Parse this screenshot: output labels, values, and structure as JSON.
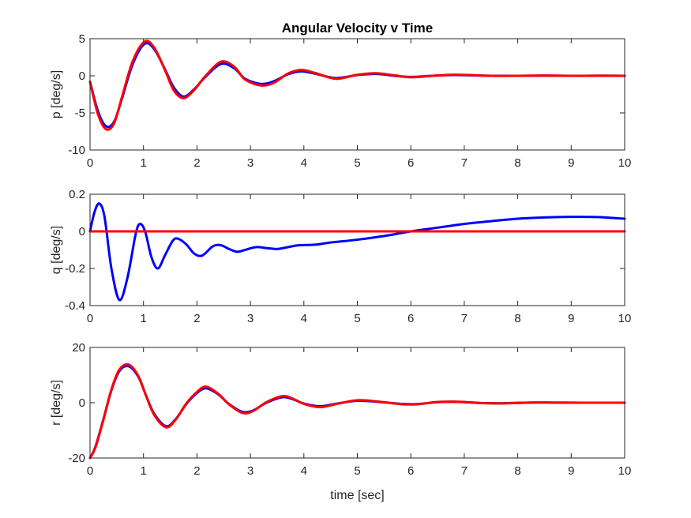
{
  "chart_data": [
    {
      "type": "line",
      "title": "Angular Velocity v Time",
      "ylabel": "p [deg/s]",
      "xlabel": "",
      "xlim": [
        0,
        10
      ],
      "ylim": [
        -10,
        5
      ],
      "xticks": [
        0,
        1,
        2,
        3,
        4,
        5,
        6,
        7,
        8,
        9,
        10
      ],
      "yticks": [
        -10,
        -5,
        0,
        5
      ],
      "grid": false,
      "series": [
        {
          "color": "#0000ff",
          "x": [
            0,
            0.15,
            0.3,
            0.45,
            0.6,
            0.8,
            1.02,
            1.2,
            1.4,
            1.57,
            1.75,
            1.95,
            2.15,
            2.45,
            2.7,
            2.9,
            3.2,
            3.45,
            3.7,
            3.95,
            4.2,
            4.6,
            5.0,
            5.35,
            5.7,
            6.0,
            6.4,
            6.8,
            7.2,
            7.5,
            8.0,
            8.5,
            9.0,
            9.5,
            10.0
          ],
          "y": [
            -0.8,
            -4.8,
            -6.8,
            -6.2,
            -3.0,
            1.6,
            4.3,
            3.6,
            0.9,
            -1.6,
            -2.8,
            -1.8,
            -0.2,
            1.6,
            1.0,
            -0.4,
            -1.1,
            -0.7,
            0.2,
            0.6,
            0.3,
            -0.3,
            0.1,
            0.25,
            0.0,
            -0.15,
            0.0,
            0.1,
            0.05,
            0.0,
            0.0,
            0.02,
            0.0,
            0.01,
            0.0
          ]
        },
        {
          "color": "#ff0000",
          "x": [
            0,
            0.15,
            0.3,
            0.45,
            0.6,
            0.8,
            1.02,
            1.2,
            1.4,
            1.57,
            1.75,
            1.95,
            2.15,
            2.45,
            2.7,
            2.9,
            3.2,
            3.45,
            3.7,
            3.95,
            4.2,
            4.6,
            5.0,
            5.35,
            5.7,
            6.0,
            6.4,
            6.8,
            7.2,
            7.5,
            8.0,
            8.5,
            9.0,
            9.5,
            10.0
          ],
          "y": [
            -0.8,
            -5.2,
            -7.2,
            -6.4,
            -2.8,
            2.0,
            4.6,
            3.8,
            0.8,
            -2.0,
            -3.0,
            -1.9,
            -0.1,
            1.9,
            1.2,
            -0.5,
            -1.3,
            -0.9,
            0.3,
            0.8,
            0.4,
            -0.4,
            0.15,
            0.35,
            0.05,
            -0.2,
            0.0,
            0.15,
            0.08,
            0.0,
            0.0,
            0.03,
            0.0,
            0.01,
            0.0
          ]
        }
      ]
    },
    {
      "type": "line",
      "title": "",
      "ylabel": "q [deg/s]",
      "xlabel": "",
      "xlim": [
        0,
        10
      ],
      "ylim": [
        -0.4,
        0.2
      ],
      "xticks": [
        0,
        1,
        2,
        3,
        4,
        5,
        6,
        7,
        8,
        9,
        10
      ],
      "yticks": [
        -0.4,
        -0.2,
        0,
        0.2
      ],
      "grid": false,
      "series": [
        {
          "color": "#0000ff",
          "x": [
            0,
            0.08,
            0.17,
            0.27,
            0.4,
            0.55,
            0.7,
            0.85,
            0.93,
            1.03,
            1.15,
            1.27,
            1.4,
            1.55,
            1.65,
            1.8,
            1.95,
            2.1,
            2.3,
            2.45,
            2.6,
            2.75,
            2.9,
            3.1,
            3.3,
            3.5,
            3.7,
            3.9,
            4.2,
            4.5,
            5.0,
            5.5,
            6.0,
            6.5,
            7.0,
            7.5,
            8.0,
            8.5,
            9.0,
            9.5,
            10.0
          ],
          "y": [
            0.0,
            0.1,
            0.15,
            0.08,
            -0.2,
            -0.37,
            -0.25,
            -0.02,
            0.04,
            0.0,
            -0.14,
            -0.2,
            -0.13,
            -0.05,
            -0.04,
            -0.07,
            -0.12,
            -0.13,
            -0.08,
            -0.075,
            -0.095,
            -0.11,
            -0.1,
            -0.085,
            -0.09,
            -0.095,
            -0.085,
            -0.075,
            -0.072,
            -0.06,
            -0.045,
            -0.025,
            0.0,
            0.02,
            0.04,
            0.055,
            0.068,
            0.075,
            0.078,
            0.077,
            0.068
          ]
        },
        {
          "color": "#ff0000",
          "x": [
            0,
            10
          ],
          "y": [
            0,
            0
          ]
        }
      ]
    },
    {
      "type": "line",
      "title": "",
      "ylabel": "r [deg/s]",
      "xlabel": "time [sec]",
      "xlim": [
        0,
        10
      ],
      "ylim": [
        -20,
        20
      ],
      "xticks": [
        0,
        1,
        2,
        3,
        4,
        5,
        6,
        7,
        8,
        9,
        10
      ],
      "yticks": [
        -20,
        0,
        20
      ],
      "grid": false,
      "series": [
        {
          "color": "#0000ff",
          "x": [
            0,
            0.1,
            0.25,
            0.4,
            0.55,
            0.72,
            0.9,
            1.05,
            1.2,
            1.42,
            1.6,
            1.8,
            2.0,
            2.17,
            2.4,
            2.6,
            2.85,
            3.05,
            3.3,
            3.6,
            3.8,
            4.0,
            4.3,
            4.6,
            5.0,
            5.4,
            5.8,
            6.1,
            6.5,
            6.9,
            7.3,
            7.7,
            8.2,
            8.7,
            9.2,
            9.6,
            10.0
          ],
          "y": [
            -20.0,
            -16.0,
            -6.0,
            4.5,
            11.5,
            13.2,
            9.5,
            2.5,
            -4.0,
            -8.5,
            -6.0,
            -0.5,
            3.5,
            5.2,
            3.0,
            -0.5,
            -3.3,
            -2.8,
            0.0,
            2.0,
            1.2,
            -0.3,
            -1.3,
            -0.4,
            0.7,
            0.3,
            -0.4,
            -0.5,
            0.2,
            0.3,
            -0.1,
            -0.2,
            0.05,
            0.05,
            0.0,
            0.0,
            0.0
          ]
        },
        {
          "color": "#ff0000",
          "x": [
            0,
            0.1,
            0.25,
            0.4,
            0.55,
            0.72,
            0.9,
            1.05,
            1.2,
            1.42,
            1.6,
            1.8,
            2.0,
            2.17,
            2.4,
            2.6,
            2.85,
            3.05,
            3.3,
            3.6,
            3.8,
            4.0,
            4.3,
            4.6,
            5.0,
            5.4,
            5.8,
            6.1,
            6.5,
            6.9,
            7.3,
            7.7,
            8.2,
            8.7,
            9.2,
            9.6,
            10.0
          ],
          "y": [
            -20.0,
            -16.3,
            -6.2,
            4.8,
            12.0,
            13.8,
            9.8,
            2.4,
            -4.4,
            -8.9,
            -6.2,
            -0.3,
            3.9,
            5.8,
            3.2,
            -0.6,
            -3.7,
            -3.0,
            0.2,
            2.4,
            1.4,
            -0.4,
            -1.6,
            -0.5,
            0.9,
            0.4,
            -0.5,
            -0.6,
            0.25,
            0.35,
            -0.1,
            -0.25,
            0.05,
            0.05,
            0.0,
            0.0,
            0.0
          ]
        }
      ]
    }
  ]
}
